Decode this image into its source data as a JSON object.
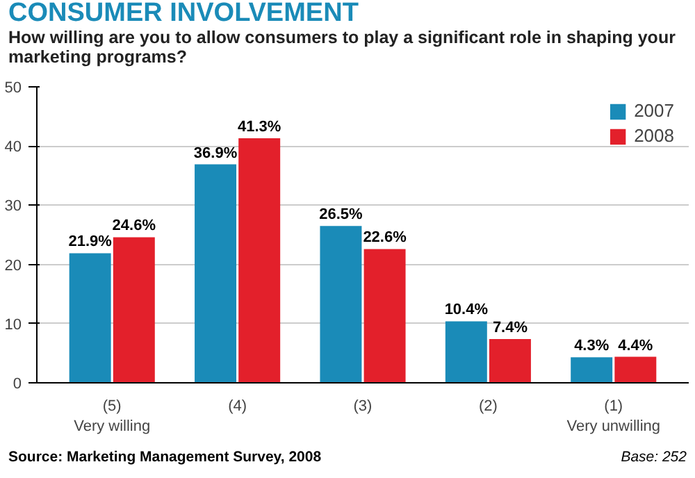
{
  "chart_data": {
    "type": "bar",
    "title": "CONSUMER INVOLVEMENT",
    "subtitle": "How willing are you to allow consumers to play a significant role in shaping your marketing programs?",
    "categories": [
      "(5)\nVery willing",
      "(4)",
      "(3)",
      "(2)",
      "(1)\nVery unwilling"
    ],
    "series": [
      {
        "name": "2007",
        "color": "#1a8bb8",
        "values": [
          21.9,
          36.9,
          26.5,
          10.4,
          4.3
        ],
        "value_labels": [
          "21.9%",
          "36.9%",
          "26.5%",
          "10.4%",
          "4.3%"
        ]
      },
      {
        "name": "2008",
        "color": "#e3202b",
        "values": [
          24.6,
          41.3,
          22.6,
          7.4,
          4.4
        ],
        "value_labels": [
          "24.6%",
          "41.3%",
          "22.6%",
          "7.4%",
          "4.4%"
        ]
      }
    ],
    "ylim": [
      0,
      50
    ],
    "yticks": [
      0,
      10,
      20,
      30,
      40,
      50
    ],
    "grid": "y",
    "legend": "top right",
    "annotations": [
      "Source: Marketing Management Survey, 2008",
      "Base: 252"
    ]
  }
}
